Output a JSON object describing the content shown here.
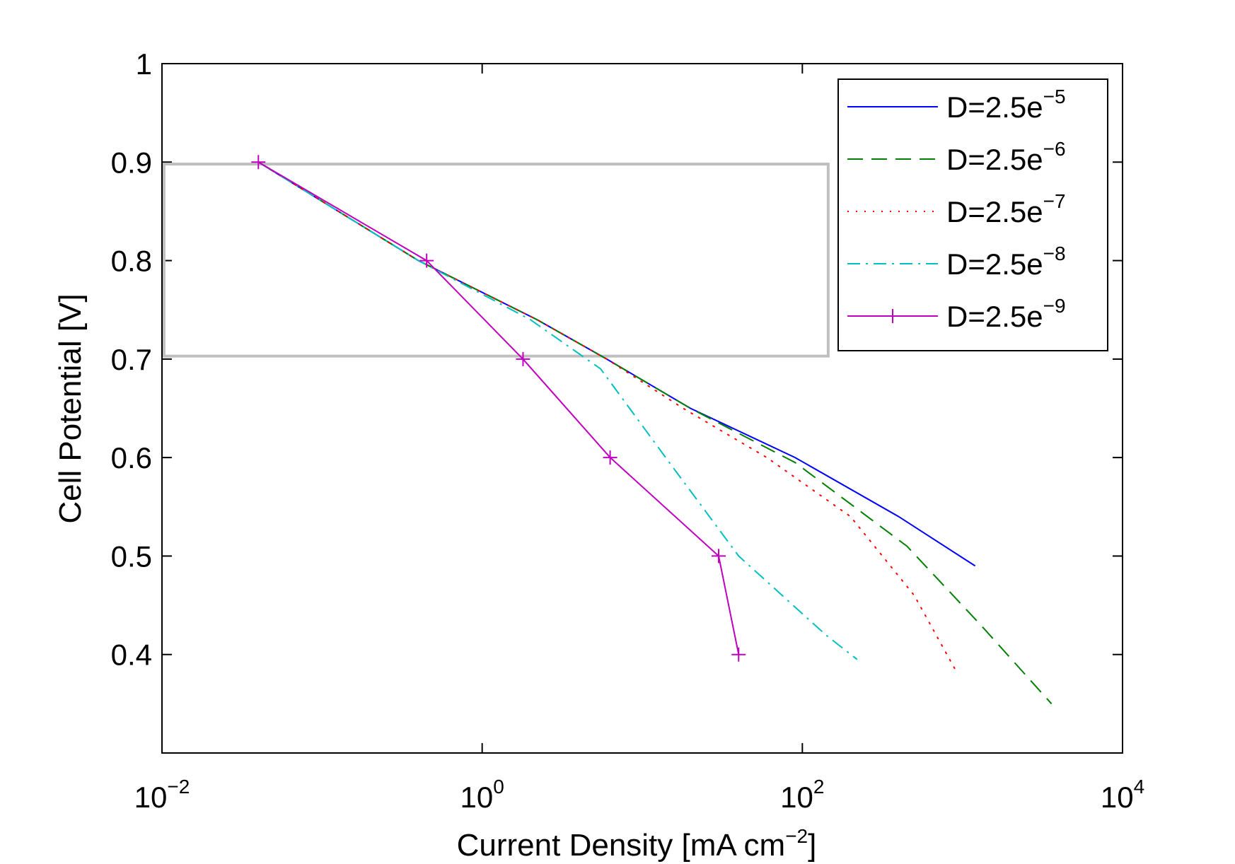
{
  "chart_data": {
    "type": "line",
    "title": "",
    "xlabel": "Current Density [mA cm",
    "xlabel_sup": "−2",
    "xlabel_end": "]",
    "ylabel": "Cell Potential [V]",
    "xscale": "log",
    "xlim": [
      0.01,
      10000
    ],
    "ylim": [
      0.3,
      1.0
    ],
    "x_ticks": [
      {
        "value": 0.01,
        "base": "10",
        "exp": "−2"
      },
      {
        "value": 1,
        "base": "10",
        "exp": "0"
      },
      {
        "value": 100,
        "base": "10",
        "exp": "2"
      },
      {
        "value": 10000,
        "base": "10",
        "exp": "4"
      }
    ],
    "y_ticks": [
      {
        "value": 0.4,
        "label": "0.4"
      },
      {
        "value": 0.5,
        "label": "0.5"
      },
      {
        "value": 0.6,
        "label": "0.6"
      },
      {
        "value": 0.7,
        "label": "0.7"
      },
      {
        "value": 0.8,
        "label": "0.8"
      },
      {
        "value": 0.9,
        "label": "0.9"
      },
      {
        "value": 1.0,
        "label": "1"
      }
    ],
    "legend_position": "top-right",
    "highlight_box": {
      "x_range": [
        0.0103,
        145
      ],
      "y_range": [
        0.703,
        0.898
      ],
      "color": "#bfbfbf"
    },
    "series": [
      {
        "name_base": "D=2.5e",
        "name_exp": "−5",
        "color": "#0000ff",
        "style": "solid",
        "marker": "none",
        "x": [
          0.04,
          0.4,
          2.2,
          6.0,
          20,
          90,
          400,
          1200
        ],
        "y": [
          0.9,
          0.8,
          0.74,
          0.7,
          0.65,
          0.6,
          0.54,
          0.49
        ]
      },
      {
        "name_base": "D=2.5e",
        "name_exp": "−6",
        "color": "#008000",
        "style": "dashed",
        "marker": "none",
        "x": [
          0.04,
          0.4,
          2.2,
          6.0,
          20,
          90,
          450,
          1300,
          3600
        ],
        "y": [
          0.9,
          0.8,
          0.74,
          0.7,
          0.65,
          0.595,
          0.51,
          0.43,
          0.35
        ]
      },
      {
        "name_base": "D=2.5e",
        "name_exp": "−7",
        "color": "#ff0000",
        "style": "dotted",
        "marker": "none",
        "x": [
          0.04,
          0.4,
          2.2,
          6.0,
          18,
          60,
          200,
          500,
          900
        ],
        "y": [
          0.9,
          0.8,
          0.74,
          0.7,
          0.65,
          0.6,
          0.54,
          0.46,
          0.385
        ]
      },
      {
        "name_base": "D=2.5e",
        "name_exp": "−8",
        "color": "#00bfbf",
        "style": "dashdot",
        "marker": "none",
        "x": [
          0.04,
          0.4,
          2.0,
          5.5,
          14,
          40,
          140,
          220
        ],
        "y": [
          0.9,
          0.8,
          0.74,
          0.69,
          0.6,
          0.5,
          0.42,
          0.395
        ]
      },
      {
        "name_base": "D=2.5e",
        "name_exp": "−9",
        "color": "#bf00bf",
        "style": "solid",
        "marker": "plus",
        "x": [
          0.04,
          0.45,
          1.8,
          6.3,
          30,
          40
        ],
        "y": [
          0.9,
          0.8,
          0.7,
          0.6,
          0.5,
          0.4
        ]
      }
    ]
  }
}
